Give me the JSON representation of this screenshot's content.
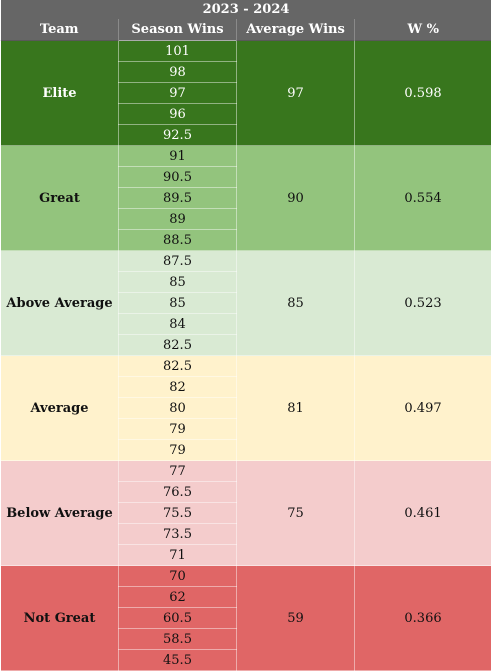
{
  "title": "2023 - 2024",
  "headers": {
    "team": "Team",
    "season_wins": "Season Wins",
    "average_wins": "Average Wins",
    "w_pct": "W %"
  },
  "tiers": [
    {
      "name": "Elite",
      "wins": [
        "101",
        "98",
        "97",
        "96",
        "92.5"
      ],
      "average": "97",
      "w_pct": "0.598",
      "color": "#38761d"
    },
    {
      "name": "Great",
      "wins": [
        "91",
        "90.5",
        "89.5",
        "89",
        "88.5"
      ],
      "average": "90",
      "w_pct": "0.554",
      "color": "#93c47d"
    },
    {
      "name": "Above Average",
      "wins": [
        "87.5",
        "85",
        "85",
        "84",
        "82.5"
      ],
      "average": "85",
      "w_pct": "0.523",
      "color": "#d9ead3"
    },
    {
      "name": "Average",
      "wins": [
        "82.5",
        "82",
        "80",
        "79",
        "79"
      ],
      "average": "81",
      "w_pct": "0.497",
      "color": "#fff2cc"
    },
    {
      "name": "Below Average",
      "wins": [
        "77",
        "76.5",
        "75.5",
        "73.5",
        "71"
      ],
      "average": "75",
      "w_pct": "0.461",
      "color": "#f4cccc"
    },
    {
      "name": "Not Great",
      "wins": [
        "70",
        "62",
        "60.5",
        "58.5",
        "45.5"
      ],
      "average": "59",
      "w_pct": "0.366",
      "color": "#e06666"
    }
  ]
}
